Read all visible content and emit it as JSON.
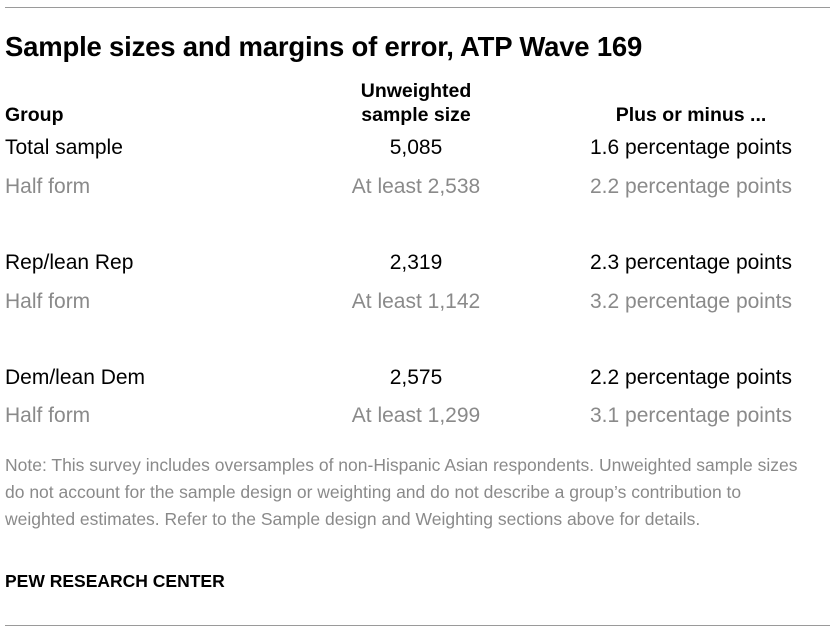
{
  "title": "Sample sizes and margins of error, ATP Wave 169",
  "headers": {
    "group": "Group",
    "sample_line1": "Unweighted",
    "sample_line2": "sample size",
    "moe": "Plus or minus ..."
  },
  "rows": [
    {
      "group": "Total sample",
      "sample": "5,085",
      "moe": "1.6 percentage points",
      "style": "main"
    },
    {
      "group": "Half form",
      "sample": "At least 2,538",
      "moe": "2.2 percentage points",
      "style": "sub"
    },
    {
      "group": "Rep/lean Rep",
      "sample": "2,319",
      "moe": "2.3 percentage points",
      "style": "main"
    },
    {
      "group": "Half form",
      "sample": "At least 1,142",
      "moe": "3.2 percentage points",
      "style": "sub"
    },
    {
      "group": "Dem/lean Dem",
      "sample": "2,575",
      "moe": "2.2 percentage points",
      "style": "main"
    },
    {
      "group": "Half form",
      "sample": "At least 1,299",
      "moe": "3.1 percentage points",
      "style": "sub"
    }
  ],
  "note": "Note: This survey includes oversamples of non-Hispanic Asian respondents. Unweighted sample sizes do not account for the sample design or weighting and do not describe a group’s contribution to weighted estimates. Refer to the Sample design and Weighting sections above for details.",
  "source": "PEW RESEARCH CENTER",
  "colors": {
    "text": "#000000",
    "muted": "#8a8a8a",
    "rule": "#9a9a9a"
  }
}
